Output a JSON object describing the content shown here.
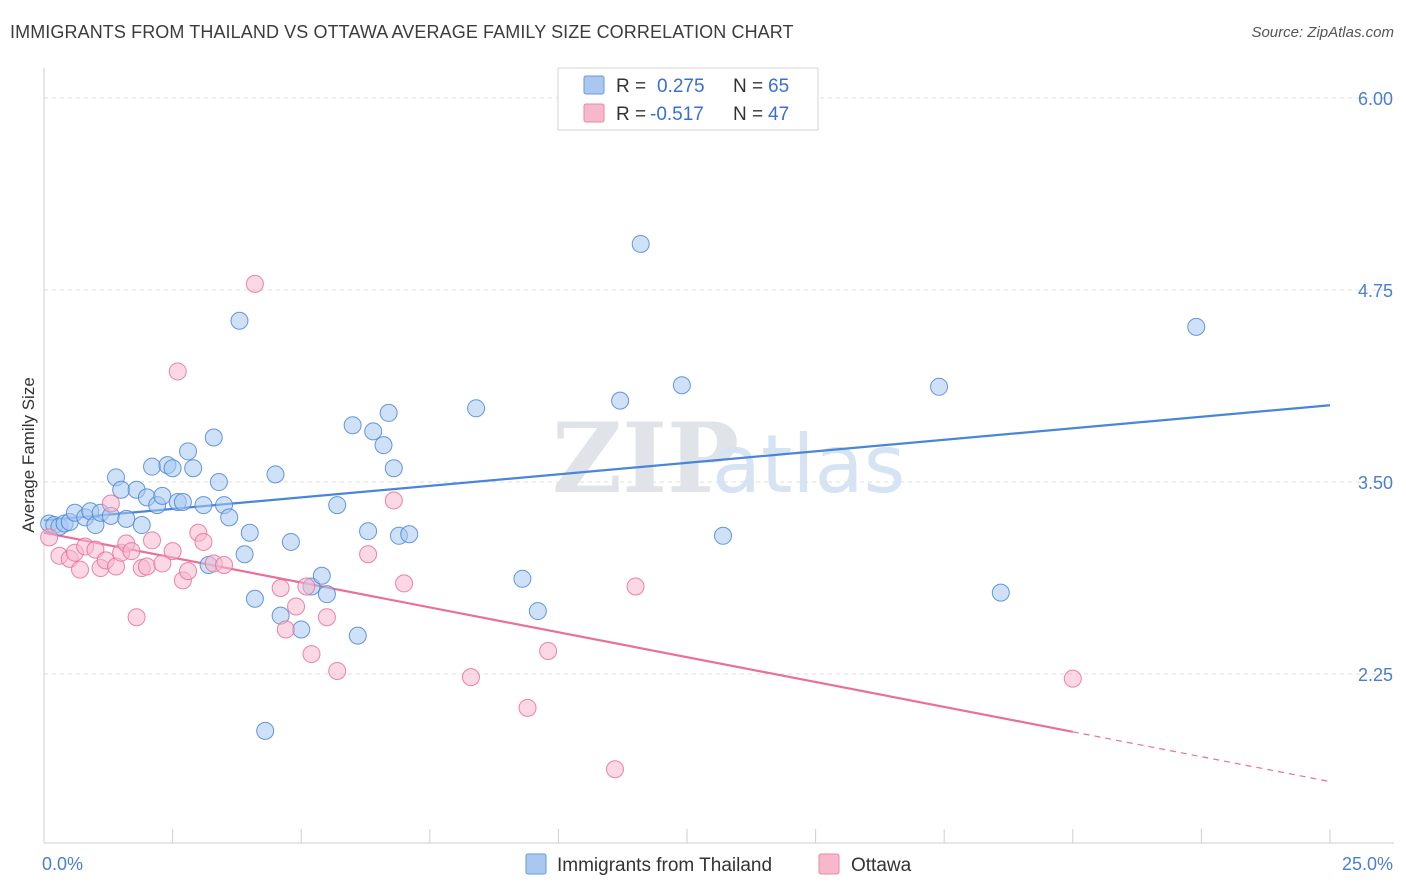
{
  "title": "IMMIGRANTS FROM THAILAND VS OTTAWA AVERAGE FAMILY SIZE CORRELATION CHART",
  "source": "Source: ZipAtlas.com",
  "watermark": {
    "zip": "ZIP",
    "atlas": "atlas"
  },
  "legend_top": [
    {
      "r_label": "R =",
      "r_value": "0.275",
      "n_label": "N =",
      "n_value": "65",
      "color": "#a8c8f0",
      "stroke": "#6a9ad8"
    },
    {
      "r_label": "R =",
      "r_value": "-0.517",
      "n_label": "N =",
      "n_value": "47",
      "color": "#f7b8cc",
      "stroke": "#e88aa8"
    }
  ],
  "legend_bottom": [
    {
      "label": "Immigrants from Thailand",
      "color": "#a8c8f0",
      "stroke": "#6a9ad8"
    },
    {
      "label": "Ottawa",
      "color": "#f7b8cc",
      "stroke": "#e88aa8"
    }
  ],
  "chart_data": {
    "type": "scatter",
    "title": "IMMIGRANTS FROM THAILAND VS OTTAWA AVERAGE FAMILY SIZE CORRELATION CHART",
    "xlabel": "",
    "ylabel": "Average Family Size",
    "xlim": [
      0,
      25
    ],
    "ylim": [
      1.15,
      6.15
    ],
    "x_tick_labels": [
      {
        "value": 0,
        "label": "0.0%"
      },
      {
        "value": 25,
        "label": "25.0%"
      }
    ],
    "y_ticks": [
      {
        "value": 2.25,
        "label": "2.25"
      },
      {
        "value": 3.5,
        "label": "3.50"
      },
      {
        "value": 4.75,
        "label": "4.75"
      },
      {
        "value": 6.0,
        "label": "6.00"
      }
    ],
    "x_minor_ticks": [
      2.5,
      5,
      7.5,
      10,
      12.5,
      15,
      17.5,
      20,
      22.5,
      25
    ],
    "grid": true,
    "legend_position": "top-center",
    "series": [
      {
        "name": "Immigrants from Thailand",
        "color": "#4a86d8",
        "fill": "#a8c8f0",
        "trend": {
          "x0": 0,
          "y0": 3.25,
          "x1": 25,
          "y1": 4.0,
          "dashed_from": null
        },
        "points": [
          [
            0.1,
            3.23
          ],
          [
            0.2,
            3.22
          ],
          [
            0.3,
            3.21
          ],
          [
            0.4,
            3.23
          ],
          [
            0.5,
            3.24
          ],
          [
            0.6,
            3.3
          ],
          [
            0.8,
            3.27
          ],
          [
            0.9,
            3.31
          ],
          [
            1.0,
            3.22
          ],
          [
            1.1,
            3.3
          ],
          [
            1.3,
            3.28
          ],
          [
            1.4,
            3.53
          ],
          [
            1.5,
            3.45
          ],
          [
            1.6,
            3.26
          ],
          [
            1.8,
            3.45
          ],
          [
            1.9,
            3.22
          ],
          [
            2.0,
            3.4
          ],
          [
            2.1,
            3.6
          ],
          [
            2.2,
            3.35
          ],
          [
            2.3,
            3.41
          ],
          [
            2.4,
            3.61
          ],
          [
            2.5,
            3.59
          ],
          [
            2.6,
            3.37
          ],
          [
            2.7,
            3.37
          ],
          [
            2.8,
            3.7
          ],
          [
            2.9,
            3.59
          ],
          [
            3.1,
            3.35
          ],
          [
            3.2,
            2.96
          ],
          [
            3.3,
            3.79
          ],
          [
            3.4,
            3.5
          ],
          [
            3.5,
            3.35
          ],
          [
            3.6,
            3.27
          ],
          [
            3.8,
            4.55
          ],
          [
            3.9,
            3.03
          ],
          [
            4.0,
            3.17
          ],
          [
            4.1,
            2.74
          ],
          [
            4.3,
            1.88
          ],
          [
            4.5,
            3.55
          ],
          [
            4.6,
            2.63
          ],
          [
            4.8,
            3.11
          ],
          [
            5.0,
            2.54
          ],
          [
            5.2,
            2.82
          ],
          [
            5.4,
            2.89
          ],
          [
            5.5,
            2.77
          ],
          [
            5.7,
            3.35
          ],
          [
            6.0,
            3.87
          ],
          [
            6.1,
            2.5
          ],
          [
            6.3,
            3.18
          ],
          [
            6.4,
            3.83
          ],
          [
            6.6,
            3.74
          ],
          [
            6.7,
            3.95
          ],
          [
            6.8,
            3.59
          ],
          [
            6.9,
            3.15
          ],
          [
            7.1,
            3.16
          ],
          [
            8.4,
            3.98
          ],
          [
            9.3,
            2.87
          ],
          [
            9.6,
            2.66
          ],
          [
            11.2,
            4.03
          ],
          [
            11.6,
            5.05
          ],
          [
            12.4,
            4.13
          ],
          [
            13.2,
            3.15
          ],
          [
            17.4,
            4.12
          ],
          [
            18.6,
            2.78
          ],
          [
            22.4,
            4.51
          ]
        ]
      },
      {
        "name": "Ottawa",
        "color": "#e8709a",
        "fill": "#f7b8cc",
        "trend": {
          "x0": 0,
          "y0": 3.17,
          "x1": 25,
          "y1": 1.55,
          "solid_until": 20
        },
        "points": [
          [
            0.1,
            3.14
          ],
          [
            0.3,
            3.02
          ],
          [
            0.5,
            3.0
          ],
          [
            0.6,
            3.04
          ],
          [
            0.7,
            2.93
          ],
          [
            0.8,
            3.08
          ],
          [
            1.0,
            3.06
          ],
          [
            1.1,
            2.94
          ],
          [
            1.2,
            2.99
          ],
          [
            1.3,
            3.36
          ],
          [
            1.4,
            2.95
          ],
          [
            1.5,
            3.04
          ],
          [
            1.6,
            3.1
          ],
          [
            1.7,
            3.05
          ],
          [
            1.8,
            2.62
          ],
          [
            1.9,
            2.94
          ],
          [
            2.0,
            2.95
          ],
          [
            2.1,
            3.12
          ],
          [
            2.3,
            2.97
          ],
          [
            2.5,
            3.05
          ],
          [
            2.6,
            4.22
          ],
          [
            2.7,
            2.86
          ],
          [
            2.8,
            2.92
          ],
          [
            3.0,
            3.17
          ],
          [
            3.1,
            3.11
          ],
          [
            3.3,
            2.97
          ],
          [
            3.5,
            2.96
          ],
          [
            4.1,
            4.79
          ],
          [
            4.6,
            2.81
          ],
          [
            4.7,
            2.54
          ],
          [
            4.9,
            2.69
          ],
          [
            5.1,
            2.82
          ],
          [
            5.2,
            2.38
          ],
          [
            5.5,
            2.62
          ],
          [
            5.7,
            2.27
          ],
          [
            6.3,
            3.03
          ],
          [
            6.8,
            3.38
          ],
          [
            7.0,
            2.84
          ],
          [
            8.3,
            2.23
          ],
          [
            9.4,
            2.03
          ],
          [
            9.8,
            2.4
          ],
          [
            11.1,
            1.63
          ],
          [
            11.5,
            2.82
          ],
          [
            20.0,
            2.22
          ]
        ]
      }
    ]
  }
}
